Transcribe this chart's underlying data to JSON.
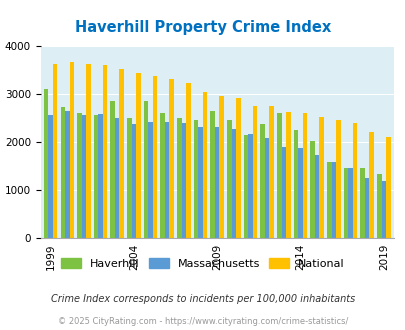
{
  "title": "Haverhill Property Crime Index",
  "years": [
    1999,
    2000,
    2001,
    2002,
    2003,
    2004,
    2005,
    2006,
    2007,
    2008,
    2009,
    2010,
    2011,
    2012,
    2013,
    2014,
    2015,
    2016,
    2017,
    2018,
    2019
  ],
  "haverhill": [
    3100,
    2720,
    2600,
    2560,
    2850,
    2500,
    2850,
    2600,
    2490,
    2450,
    2650,
    2450,
    2150,
    2380,
    2600,
    2250,
    2020,
    1570,
    1460,
    1450,
    1320
  ],
  "massachusetts": [
    2560,
    2640,
    2570,
    2590,
    2490,
    2380,
    2410,
    2420,
    2390,
    2310,
    2310,
    2260,
    2160,
    2090,
    1900,
    1870,
    1720,
    1590,
    1450,
    1250,
    1180
  ],
  "national": [
    3620,
    3660,
    3630,
    3600,
    3520,
    3430,
    3370,
    3310,
    3240,
    3040,
    2960,
    2910,
    2760,
    2740,
    2620,
    2600,
    2510,
    2460,
    2400,
    2200,
    2100
  ],
  "bar_colors": {
    "haverhill": "#7dc242",
    "massachusetts": "#5b9bd5",
    "national": "#ffc000"
  },
  "bg_color": "#ddeef5",
  "title_color": "#0070c0",
  "legend_labels": [
    "Haverhill",
    "Massachusetts",
    "National"
  ],
  "footnote1": "Crime Index corresponds to incidents per 100,000 inhabitants",
  "footnote2": "© 2025 CityRating.com - https://www.cityrating.com/crime-statistics/",
  "ylim": [
    0,
    4000
  ],
  "yticks": [
    0,
    1000,
    2000,
    3000,
    4000
  ],
  "xtick_years": [
    1999,
    2004,
    2009,
    2014,
    2019
  ]
}
